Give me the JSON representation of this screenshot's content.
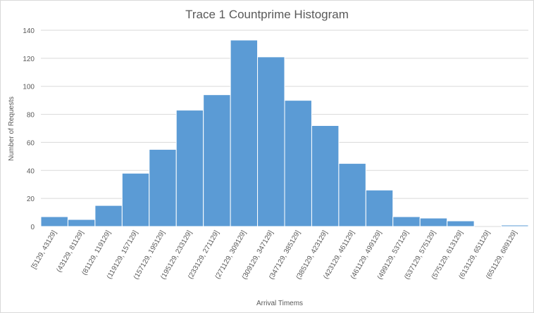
{
  "chart_data": {
    "type": "bar",
    "title": "Trace 1 Countprime Histogram",
    "xlabel": "Arrival Timems",
    "ylabel": "Number of Requests",
    "ylim": [
      0,
      140
    ],
    "yticks": [
      0,
      20,
      40,
      60,
      80,
      100,
      120,
      140
    ],
    "grid": true,
    "legend": "none",
    "bar_color": "#5b9bd5",
    "categories": [
      "[5129, 43129]",
      "(43129, 81129]",
      "(81129, 119129]",
      "(119129, 157129]",
      "(157129, 195129]",
      "(195129, 233129]",
      "(233129, 271129]",
      "(271129, 309129]",
      "(309129, 347129]",
      "(347129, 385129]",
      "(385129, 423129]",
      "(423129, 461129]",
      "(461129, 499129]",
      "(499129, 537129]",
      "(537129, 575129]",
      "(575129, 613129]",
      "(613129, 651129]",
      "(651129, 689129]"
    ],
    "values": [
      7,
      5,
      15,
      38,
      55,
      83,
      94,
      133,
      121,
      90,
      72,
      45,
      26,
      7,
      6,
      4,
      0,
      1
    ]
  }
}
